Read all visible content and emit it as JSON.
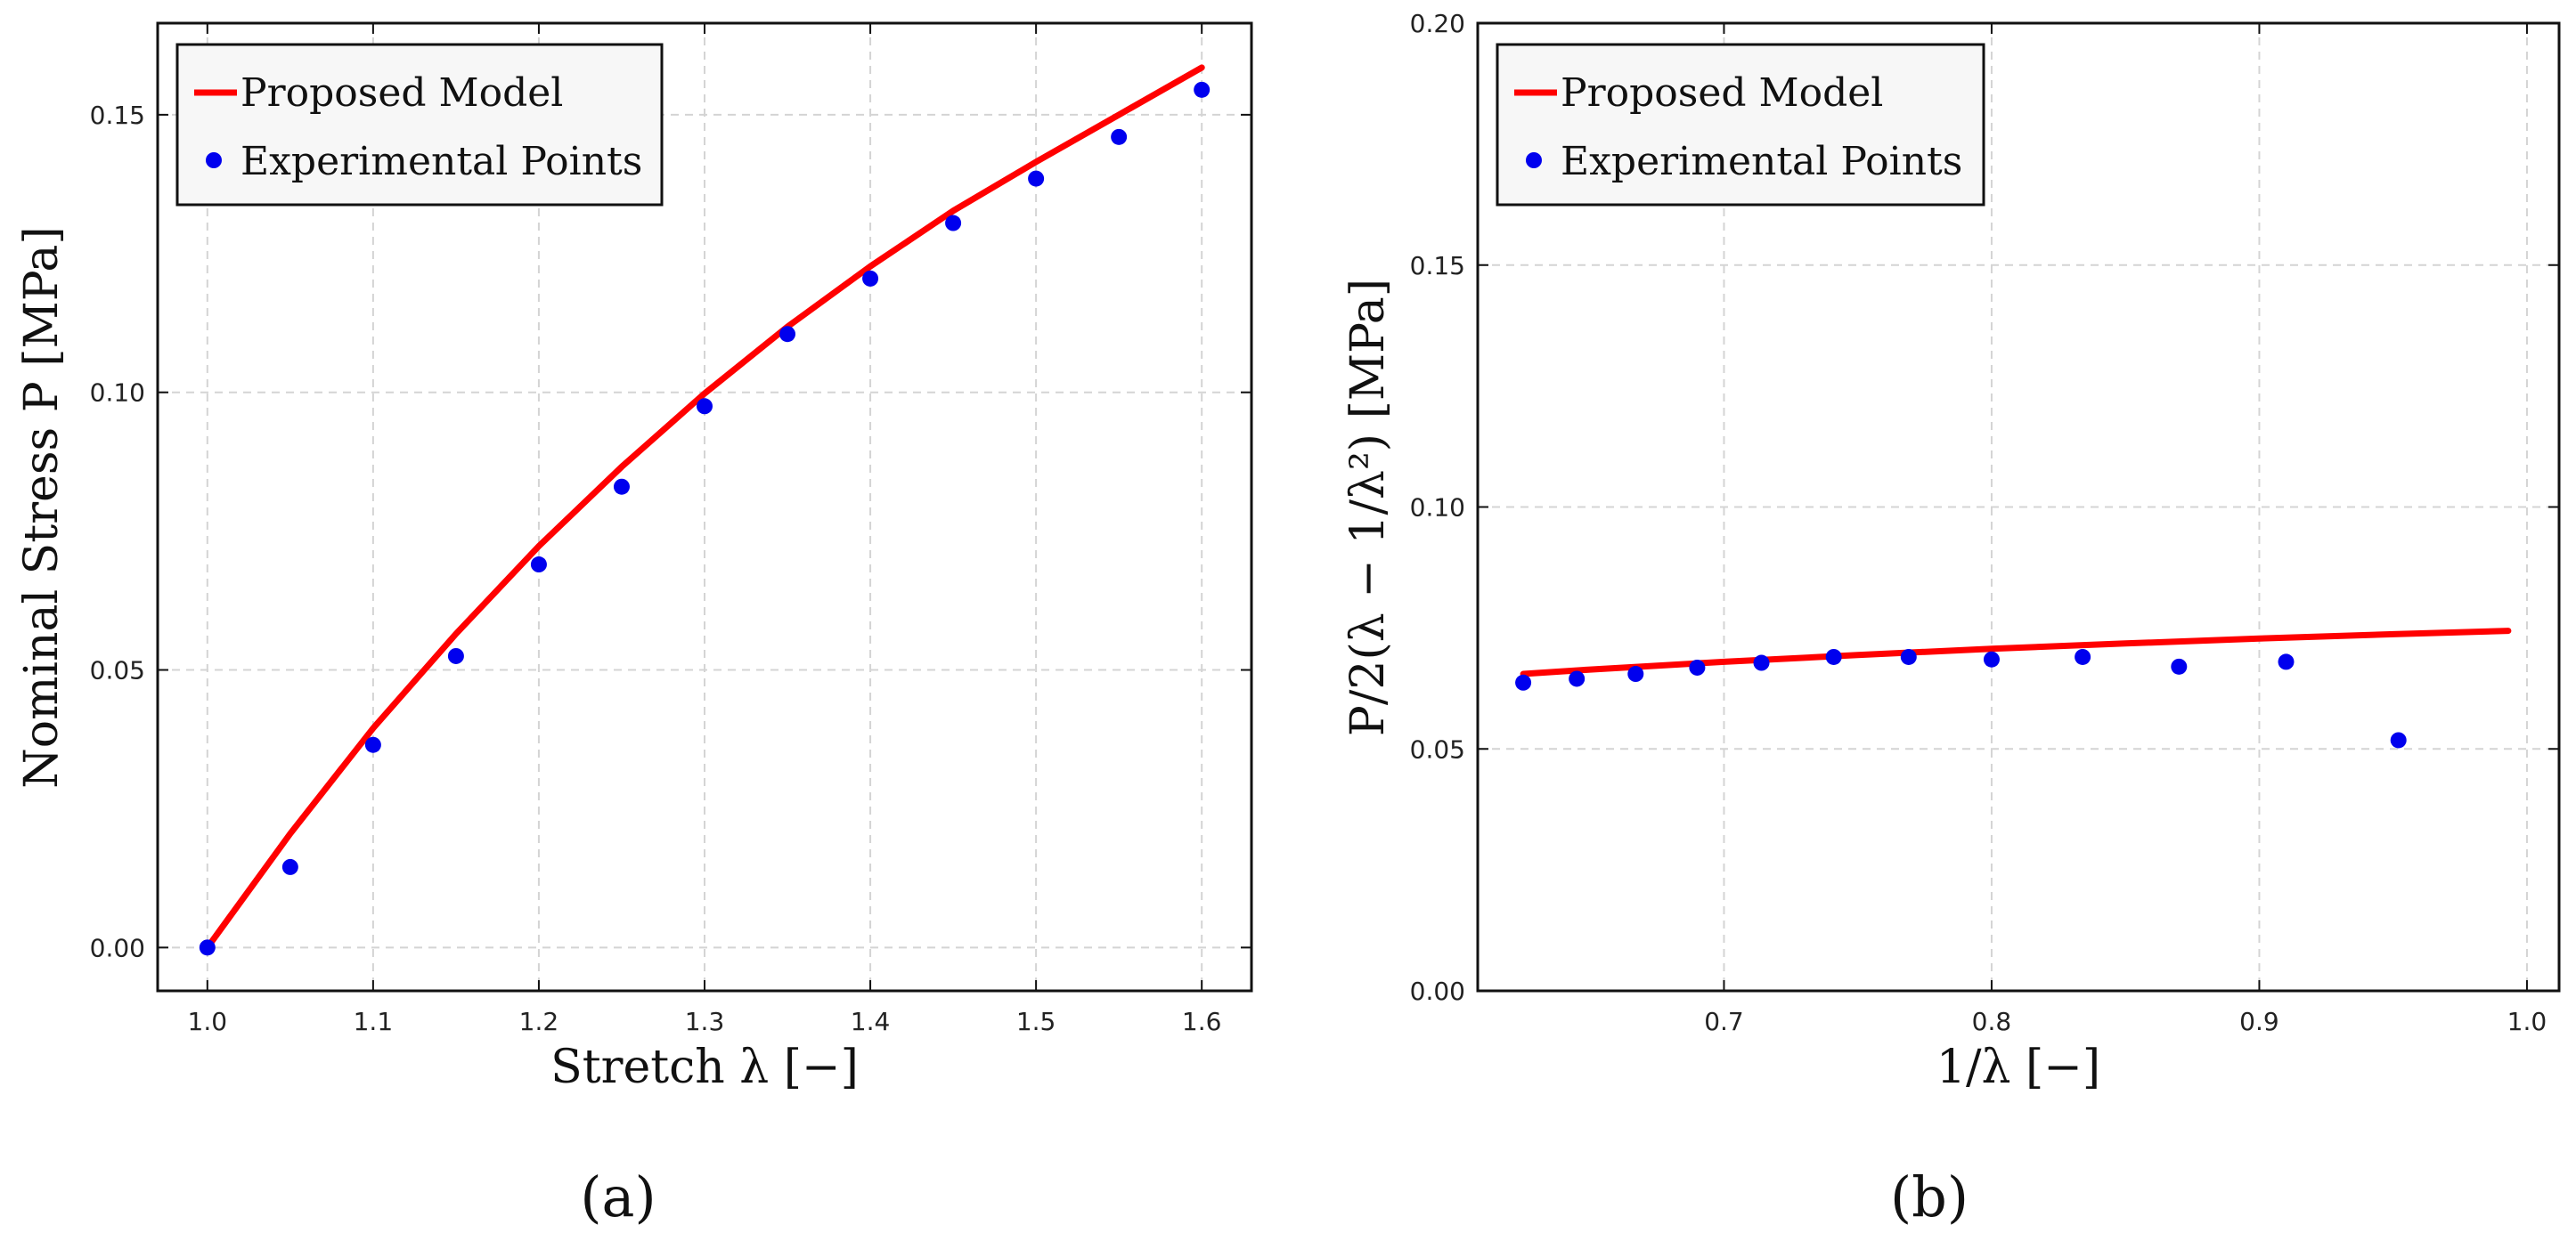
{
  "chart_data": [
    {
      "type": "line+scatter",
      "panel_label": "(a)",
      "xlabel": "Stretch λ [−]",
      "ylabel": "Nominal Stress P [MPa]",
      "xlim": [
        0.97,
        1.63
      ],
      "ylim": [
        -0.0078,
        0.1665
      ],
      "xticks": [
        1.0,
        1.1,
        1.2,
        1.3,
        1.4,
        1.5,
        1.6
      ],
      "xtick_labels": [
        "1.0",
        "1.1",
        "1.2",
        "1.3",
        "1.4",
        "1.5",
        "1.6"
      ],
      "yticks": [
        0.0,
        0.05,
        0.1,
        0.15
      ],
      "ytick_labels": [
        "0.00",
        "0.05",
        "0.10",
        "0.15"
      ],
      "grid": true,
      "legend_position": "top-left",
      "series": [
        {
          "name": "Proposed Model",
          "kind": "line",
          "color": "#ff0000",
          "x": [
            1.0,
            1.05,
            1.1,
            1.15,
            1.2,
            1.25,
            1.3,
            1.35,
            1.4,
            1.45,
            1.5,
            1.55,
            1.6
          ],
          "y": [
            0.0,
            0.0205,
            0.0395,
            0.0565,
            0.0723,
            0.0866,
            0.0998,
            0.1118,
            0.1227,
            0.1327,
            0.1415,
            0.15,
            0.1585
          ]
        },
        {
          "name": "Experimental Points",
          "kind": "scatter",
          "color": "#0000ee",
          "x": [
            1.0,
            1.05,
            1.1,
            1.15,
            1.2,
            1.25,
            1.3,
            1.35,
            1.4,
            1.45,
            1.5,
            1.55,
            1.6
          ],
          "y": [
            0.0,
            0.0145,
            0.0365,
            0.0525,
            0.069,
            0.083,
            0.0975,
            0.1105,
            0.1205,
            0.1305,
            0.1385,
            0.146,
            0.1545
          ]
        }
      ]
    },
    {
      "type": "line+scatter",
      "panel_label": "(b)",
      "xlabel": "1/λ [−]",
      "ylabel": "P/2(λ − 1/λ²) [MPa]",
      "xlim": [
        0.608,
        1.012
      ],
      "ylim": [
        0.0,
        0.2
      ],
      "xticks": [
        0.7,
        0.8,
        0.9,
        1.0
      ],
      "xtick_labels": [
        "0.7",
        "0.8",
        "0.9",
        "1.0"
      ],
      "yticks": [
        0.0,
        0.05,
        0.1,
        0.15,
        0.2
      ],
      "ytick_labels": [
        "0.00",
        "0.05",
        "0.10",
        "0.15",
        "0.20"
      ],
      "grid": true,
      "legend_position": "top-left",
      "series": [
        {
          "name": "Proposed Model",
          "kind": "line",
          "color": "#ff0000",
          "x": [
            0.625,
            0.65,
            0.7,
            0.75,
            0.8,
            0.85,
            0.9,
            0.95,
            0.993
          ],
          "y": [
            0.0655,
            0.0664,
            0.068,
            0.0694,
            0.0707,
            0.0718,
            0.0728,
            0.0737,
            0.0744
          ]
        },
        {
          "name": "Experimental Points",
          "kind": "scatter",
          "color": "#0000ee",
          "x": [
            0.625,
            0.645,
            0.667,
            0.69,
            0.714,
            0.741,
            0.769,
            0.8,
            0.834,
            0.87,
            0.91,
            0.952
          ],
          "y": [
            0.0637,
            0.0645,
            0.0655,
            0.0668,
            0.0678,
            0.069,
            0.069,
            0.0685,
            0.069,
            0.067,
            0.068,
            0.0518
          ]
        }
      ]
    }
  ]
}
